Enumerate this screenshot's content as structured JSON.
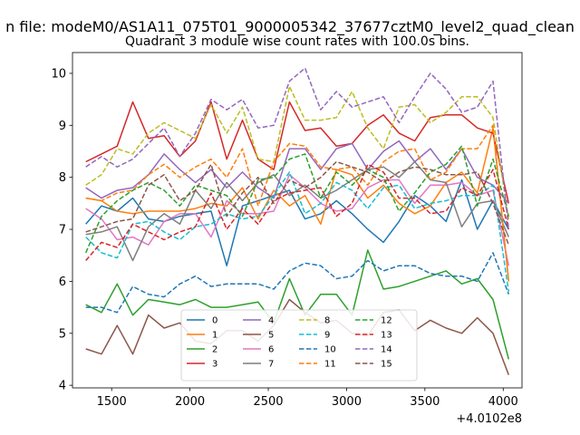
{
  "figure": {
    "suptitle": "n file: modeM0/AS1A11_075T01_9000005342_37677cztM0_level2_quad_clean",
    "title": "Quadrant 3 module wise count rates with 100.0s bins.",
    "x_offset_label": "+4.0102e8"
  },
  "chart_data": {
    "type": "line",
    "title": "Quadrant 3 module wise count rates with 100.0s bins.",
    "xlabel": "",
    "ylabel": "",
    "x_offset": "+4.0102e8",
    "xlim": [
      1250,
      4120
    ],
    "ylim": [
      3.95,
      10.4
    ],
    "xticks": [
      1500,
      2000,
      2500,
      3000,
      3500,
      4000
    ],
    "yticks": [
      4,
      5,
      6,
      7,
      8,
      9,
      10
    ],
    "grid": false,
    "legend": "lower-center, 4 columns",
    "x": [
      1335,
      1435,
      1535,
      1635,
      1735,
      1835,
      1935,
      2035,
      2135,
      2235,
      2335,
      2435,
      2535,
      2635,
      2735,
      2835,
      2935,
      3035,
      3135,
      3235,
      3335,
      3435,
      3535,
      3635,
      3735,
      3835,
      3935,
      4035
    ],
    "series": [
      {
        "name": "0",
        "color": "#1f77b4",
        "dash": "solid",
        "values": [
          7.1,
          7.45,
          7.35,
          7.6,
          7.2,
          7.15,
          7.25,
          7.3,
          7.35,
          6.3,
          7.45,
          7.55,
          7.65,
          7.75,
          7.2,
          7.3,
          7.55,
          7.3,
          7.0,
          6.75,
          7.15,
          7.65,
          7.45,
          7.15,
          7.95,
          7.0,
          7.55,
          7.0
        ]
      },
      {
        "name": "1",
        "color": "#ff7f0e",
        "dash": "solid",
        "values": [
          7.6,
          7.55,
          7.35,
          7.3,
          7.35,
          7.35,
          7.35,
          7.4,
          7.5,
          7.45,
          7.8,
          7.2,
          7.75,
          7.45,
          7.65,
          7.1,
          8.15,
          8.05,
          7.6,
          7.85,
          7.5,
          7.3,
          7.45,
          7.9,
          8.1,
          7.7,
          8.95,
          6.0
        ]
      },
      {
        "name": "2",
        "color": "#2ca02c",
        "dash": "solid",
        "values": [
          5.55,
          5.4,
          5.95,
          5.35,
          5.65,
          5.6,
          5.55,
          5.65,
          5.5,
          5.5,
          5.55,
          5.6,
          5.2,
          6.05,
          5.35,
          5.75,
          5.75,
          5.35,
          6.6,
          5.85,
          5.9,
          6.0,
          6.1,
          6.2,
          5.95,
          6.05,
          5.65,
          4.5
        ]
      },
      {
        "name": "3",
        "color": "#d62728",
        "dash": "solid",
        "values": [
          8.3,
          8.45,
          8.6,
          9.45,
          8.75,
          8.8,
          8.4,
          8.7,
          9.45,
          8.35,
          9.1,
          8.35,
          8.15,
          9.45,
          8.9,
          8.95,
          8.6,
          8.65,
          9.0,
          9.2,
          8.85,
          8.7,
          9.15,
          9.2,
          9.2,
          8.95,
          8.85,
          7.5
        ]
      },
      {
        "name": "4",
        "color": "#9467bd",
        "dash": "solid",
        "values": [
          7.8,
          7.6,
          7.75,
          7.8,
          8.05,
          8.45,
          8.15,
          7.9,
          8.15,
          7.8,
          8.1,
          7.8,
          7.6,
          8.55,
          8.55,
          8.15,
          8.55,
          8.65,
          8.15,
          8.5,
          8.7,
          8.3,
          8.55,
          8.15,
          8.55,
          8.0,
          7.85,
          7.5
        ]
      },
      {
        "name": "5",
        "color": "#8c564b",
        "dash": "solid",
        "values": [
          4.7,
          4.6,
          5.15,
          4.6,
          5.35,
          5.1,
          5.2,
          4.85,
          4.8,
          5.05,
          5.05,
          4.85,
          5.15,
          5.65,
          5.4,
          5.2,
          5.25,
          5.0,
          4.95,
          5.4,
          5.45,
          5.05,
          5.25,
          5.1,
          5.0,
          5.3,
          5.0,
          4.2
        ]
      },
      {
        "name": "6",
        "color": "#e377c2",
        "dash": "solid",
        "values": [
          7.4,
          7.2,
          6.8,
          6.85,
          6.7,
          7.15,
          7.3,
          7.3,
          6.85,
          7.55,
          7.3,
          7.3,
          7.35,
          8.05,
          7.8,
          7.5,
          7.35,
          7.4,
          7.8,
          7.95,
          7.95,
          7.5,
          7.85,
          7.85,
          7.9,
          7.65,
          7.75,
          6.3
        ]
      },
      {
        "name": "7",
        "color": "#7f7f7f",
        "dash": "solid",
        "values": [
          6.9,
          6.95,
          7.05,
          6.4,
          7.05,
          7.3,
          7.1,
          7.75,
          7.4,
          7.9,
          7.55,
          7.9,
          8.05,
          7.65,
          7.85,
          7.6,
          7.75,
          7.95,
          8.15,
          8.2,
          8.0,
          8.3,
          7.95,
          7.9,
          7.05,
          7.5,
          7.55,
          6.85
        ]
      },
      {
        "name": "8",
        "color": "#bcbd22",
        "dash": "dashed",
        "values": [
          7.85,
          8.05,
          8.55,
          8.45,
          8.85,
          9.05,
          8.9,
          8.75,
          9.4,
          8.85,
          9.35,
          8.35,
          8.3,
          9.75,
          9.1,
          9.1,
          9.15,
          9.65,
          8.95,
          8.55,
          9.35,
          9.4,
          9.05,
          9.25,
          9.55,
          9.55,
          9.15,
          7.2
        ]
      },
      {
        "name": "9",
        "color": "#17becf",
        "dash": "dashed",
        "values": [
          6.85,
          6.55,
          6.45,
          7.1,
          7.15,
          6.95,
          6.8,
          7.05,
          7.1,
          7.3,
          7.2,
          7.25,
          7.65,
          8.1,
          7.3,
          7.5,
          7.9,
          7.75,
          7.4,
          7.8,
          7.85,
          7.4,
          7.5,
          7.55,
          7.65,
          7.65,
          7.85,
          5.8
        ]
      },
      {
        "name": "10",
        "color": "#1f77b4",
        "dash": "dashed",
        "values": [
          5.5,
          5.5,
          5.4,
          5.9,
          5.75,
          5.7,
          5.95,
          6.1,
          5.9,
          5.95,
          5.95,
          5.95,
          5.85,
          6.2,
          6.35,
          6.3,
          6.05,
          6.1,
          6.4,
          6.2,
          6.3,
          6.3,
          6.15,
          6.1,
          6.1,
          6.0,
          6.55,
          5.75
        ]
      },
      {
        "name": "11",
        "color": "#ff7f0e",
        "dash": "dashed",
        "values": [
          7.6,
          7.55,
          7.7,
          7.75,
          8.05,
          8.25,
          8.0,
          8.2,
          8.35,
          8.0,
          8.55,
          7.45,
          8.3,
          8.65,
          8.6,
          8.2,
          8.15,
          8.2,
          7.85,
          8.3,
          8.5,
          8.55,
          7.95,
          8.1,
          8.55,
          8.55,
          9.0,
          6.0
        ]
      },
      {
        "name": "12",
        "color": "#2ca02c",
        "dash": "dashed",
        "values": [
          6.55,
          7.25,
          7.55,
          7.75,
          7.9,
          7.75,
          7.45,
          7.85,
          7.75,
          7.65,
          7.25,
          7.95,
          8.0,
          8.35,
          8.45,
          7.6,
          8.1,
          7.85,
          8.15,
          8.0,
          7.35,
          7.7,
          8.1,
          8.25,
          8.6,
          7.45,
          8.35,
          7.25
        ]
      },
      {
        "name": "13",
        "color": "#d62728",
        "dash": "dashed",
        "values": [
          6.4,
          6.75,
          6.65,
          7.1,
          6.95,
          6.8,
          6.95,
          7.05,
          7.7,
          7.0,
          7.4,
          7.1,
          7.55,
          7.7,
          7.75,
          7.8,
          7.25,
          7.5,
          8.25,
          8.1,
          7.6,
          7.6,
          7.3,
          7.35,
          7.8,
          7.65,
          8.15,
          7.0
        ]
      },
      {
        "name": "14",
        "color": "#9467bd",
        "dash": "dashed",
        "values": [
          8.2,
          8.4,
          8.2,
          8.35,
          8.65,
          8.95,
          8.4,
          8.85,
          9.5,
          9.3,
          9.5,
          8.95,
          9.0,
          9.85,
          10.1,
          9.3,
          9.65,
          9.35,
          9.45,
          9.55,
          9.05,
          9.55,
          10.0,
          9.7,
          9.25,
          9.35,
          9.85,
          7.0
        ]
      },
      {
        "name": "15",
        "color": "#8c564b",
        "dash": "dashed",
        "values": [
          6.95,
          7.05,
          7.15,
          7.2,
          7.85,
          8.05,
          7.55,
          7.75,
          8.25,
          7.25,
          7.7,
          8.0,
          7.5,
          7.95,
          7.8,
          8.0,
          8.3,
          8.2,
          8.1,
          7.9,
          8.1,
          8.2,
          8.15,
          8.05,
          8.05,
          8.1,
          7.5,
          6.7
        ]
      }
    ]
  }
}
